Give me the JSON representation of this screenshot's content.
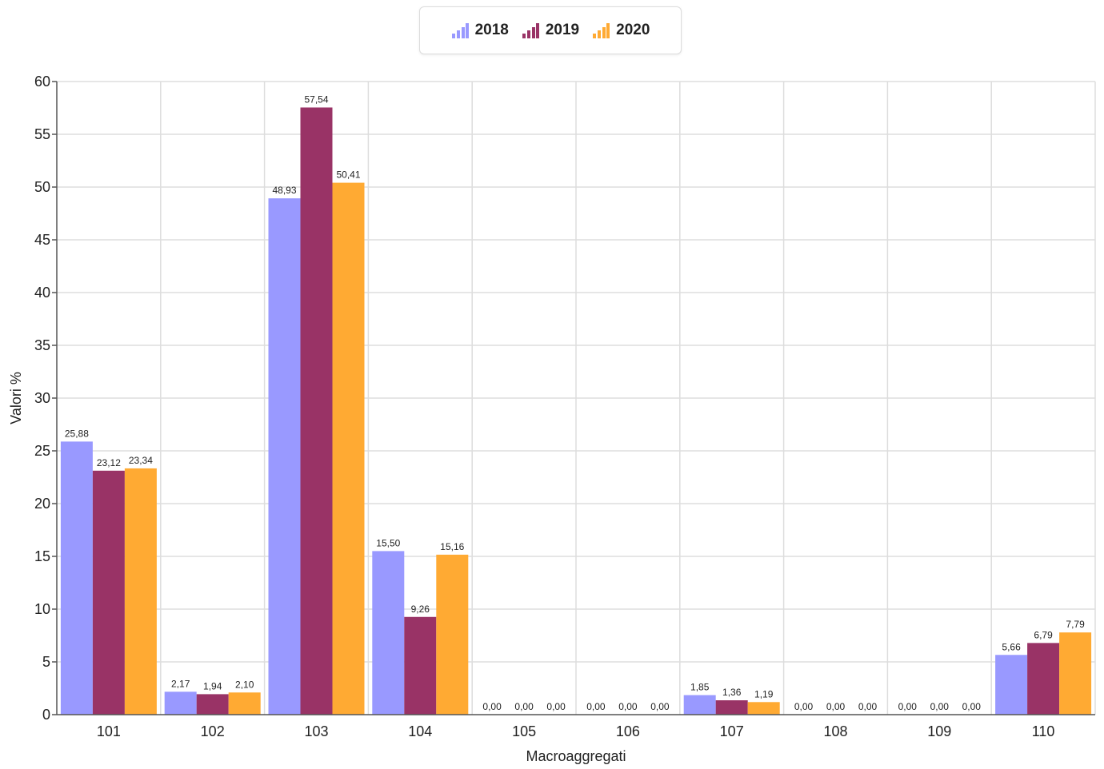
{
  "chart_data": {
    "type": "bar",
    "categories": [
      "101",
      "102",
      "103",
      "104",
      "105",
      "106",
      "107",
      "108",
      "109",
      "110"
    ],
    "series": [
      {
        "name": "2018",
        "color": "#9999ff",
        "values": [
          25.88,
          2.17,
          48.93,
          15.5,
          0.0,
          0.0,
          1.85,
          0.0,
          0.0,
          5.66
        ],
        "labels": [
          "25,88",
          "2,17",
          "48,93",
          "15,50",
          "0,00",
          "0,00",
          "1,85",
          "0,00",
          "0,00",
          "5,66"
        ]
      },
      {
        "name": "2019",
        "color": "#993366",
        "values": [
          23.12,
          1.94,
          57.54,
          9.26,
          0.0,
          0.0,
          1.36,
          0.0,
          0.0,
          6.79
        ],
        "labels": [
          "23,12",
          "1,94",
          "57,54",
          "9,26",
          "0,00",
          "0,00",
          "1,36",
          "0,00",
          "0,00",
          "6,79"
        ]
      },
      {
        "name": "2020",
        "color": "#ffaa33",
        "values": [
          23.34,
          2.1,
          50.41,
          15.16,
          0.0,
          0.0,
          1.19,
          0.0,
          0.0,
          7.79
        ],
        "labels": [
          "23,34",
          "2,10",
          "50,41",
          "15,16",
          "0,00",
          "0,00",
          "1,19",
          "0,00",
          "0,00",
          "7,79"
        ]
      }
    ],
    "xlabel": "Macroaggregati",
    "ylabel": "Valori %",
    "ylim": [
      0,
      60
    ],
    "yticks": [
      0,
      5,
      10,
      15,
      20,
      25,
      30,
      35,
      40,
      45,
      50,
      55,
      60
    ],
    "grid": true,
    "legend_position": "top-center"
  }
}
